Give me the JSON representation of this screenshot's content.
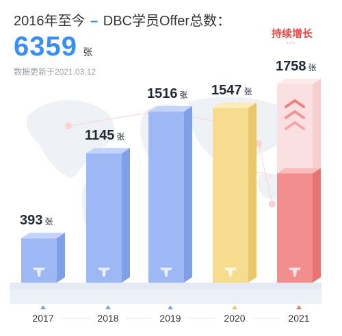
{
  "header": {
    "title_prefix": "2016年至今",
    "dash": "–",
    "title_suffix": "DBC学员Offer总数：",
    "total_value": "6359",
    "total_unit": "张",
    "update_note": "数据更新于2021.03.12"
  },
  "annotation": {
    "growth_label": "持续增长",
    "dots": "···"
  },
  "colors": {
    "blue": "#9db8f4",
    "blue_dark": "#7f9fe6",
    "blue_top": "#c4d4fb",
    "yellow": "#f5dc8e",
    "yellow_dark": "#e9c86a",
    "yellow_top": "#fbecc0",
    "red": "#f28e8e",
    "red_dark": "#e97373",
    "red_top": "#f9bcbc",
    "accent": "#3a8ff2",
    "alert": "#e8494b"
  },
  "chart_data": {
    "type": "bar",
    "categories": [
      "2017",
      "2018",
      "2019",
      "2020",
      "2021"
    ],
    "values": [
      393,
      1145,
      1516,
      1547,
      1758
    ],
    "value_unit": "张",
    "title": "",
    "xlabel": "",
    "ylabel": "",
    "ylim": [
      0,
      1800
    ],
    "grid": false,
    "legend": "none"
  }
}
